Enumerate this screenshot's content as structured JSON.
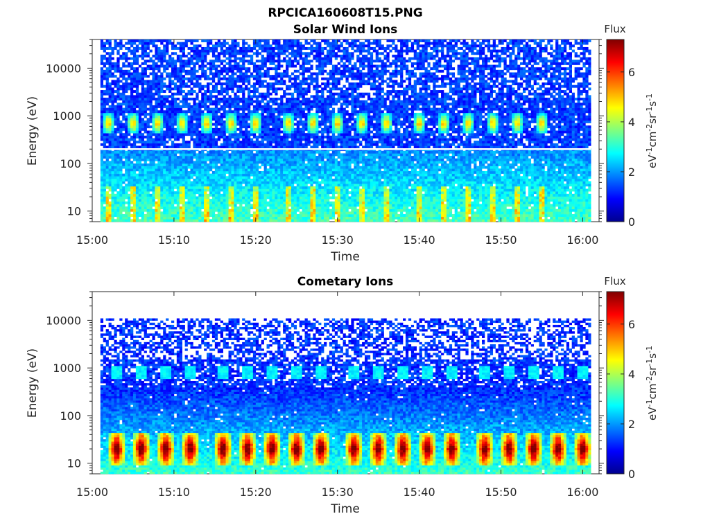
{
  "figure": {
    "title": "RPCICA160608T15.PNG"
  },
  "chart_data": [
    {
      "type": "heatmap",
      "title": "Solar Wind Ions",
      "xlabel": "Time",
      "ylabel": "Energy (eV)",
      "xticks": [
        "15:00",
        "15:10",
        "15:20",
        "15:30",
        "15:40",
        "15:50",
        "16:00"
      ],
      "yticks": [
        "10",
        "100",
        "1000",
        "10000"
      ],
      "yscale": "log",
      "ylim": [
        6,
        40000
      ],
      "xlim": [
        "15:00",
        "16:02"
      ],
      "colorbar": {
        "label": "Flux",
        "unit": "eV-1cm-2sr-1s-1",
        "ticks": [
          "0",
          "2",
          "4",
          "6"
        ],
        "range": [
          0,
          7.3
        ]
      },
      "features": {
        "data_start": "15:01",
        "data_end": "16:01",
        "band_energy_eV": 700,
        "band_peak_flux": 4.2,
        "band_times": [
          "15:02",
          "15:05",
          "15:08",
          "15:11",
          "15:14",
          "15:17",
          "15:20",
          "15:24",
          "15:27",
          "15:30",
          "15:33",
          "15:36",
          "15:40",
          "15:43",
          "15:46",
          "15:49",
          "15:52",
          "15:55"
        ],
        "separator_energy_eV": 200,
        "low_energy_flux": 2.6,
        "background_flux": 0.9
      }
    },
    {
      "type": "heatmap",
      "title": "Cometary Ions",
      "xlabel": "Time",
      "ylabel": "Energy (eV)",
      "xticks": [
        "15:00",
        "15:10",
        "15:20",
        "15:30",
        "15:40",
        "15:50",
        "16:00"
      ],
      "yticks": [
        "10",
        "100",
        "1000",
        "10000"
      ],
      "yscale": "log",
      "ylim": [
        6,
        40000
      ],
      "xlim": [
        "15:00",
        "16:02"
      ],
      "colorbar": {
        "label": "Flux",
        "unit": "eV-1cm-2sr-1s-1",
        "ticks": [
          "0",
          "2",
          "4",
          "6"
        ],
        "range": [
          0,
          7.3
        ]
      },
      "features": {
        "data_start": "15:01",
        "data_end": "16:01",
        "data_top_energy_eV": 11000,
        "burst_energy_eV": 20,
        "burst_peak_flux": 5.8,
        "burst_times": [
          "15:03",
          "15:06",
          "15:09",
          "15:12",
          "15:16",
          "15:19",
          "15:22",
          "15:25",
          "15:28",
          "15:32",
          "15:35",
          "15:38",
          "15:41",
          "15:44",
          "15:48",
          "15:51",
          "15:54",
          "15:57",
          "16:00"
        ],
        "weak_band_energy_eV": 800,
        "weak_band_flux": 1.8,
        "background_flux": 0.8
      }
    }
  ]
}
